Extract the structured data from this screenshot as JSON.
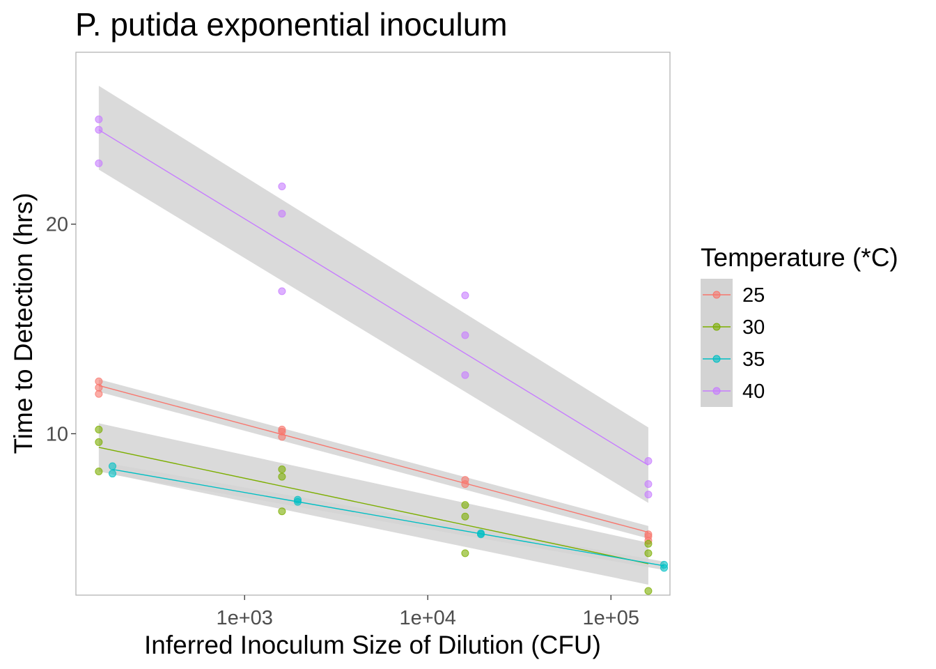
{
  "chart_data": {
    "type": "scatter",
    "title": "P. putida exponential inoculum",
    "xlabel": "Inferred Inoculum Size of Dilution (CFU)",
    "ylabel": "Time to Detection (hrs)",
    "x_scale": "log10",
    "xlim": [
      120,
      210000
    ],
    "ylim": [
      2.3,
      28.2
    ],
    "x_ticks": [
      {
        "value": 1000,
        "label": "1e+03"
      },
      {
        "value": 10000,
        "label": "1e+04"
      },
      {
        "value": 100000,
        "label": "1e+05"
      }
    ],
    "y_ticks": [
      {
        "value": 10,
        "label": "10"
      },
      {
        "value": 20,
        "label": "20"
      }
    ],
    "grid": false,
    "legend": {
      "title": "Temperature (*C)",
      "position": "right"
    },
    "confidence_band_color": "#d3d3d3",
    "series": [
      {
        "name": "25",
        "color": "#F8766D",
        "points": [
          {
            "x": 160,
            "y": 12.5
          },
          {
            "x": 160,
            "y": 12.2
          },
          {
            "x": 160,
            "y": 11.9
          },
          {
            "x": 1600,
            "y": 10.2
          },
          {
            "x": 1600,
            "y": 10.1
          },
          {
            "x": 1600,
            "y": 9.85
          },
          {
            "x": 16000,
            "y": 7.8
          },
          {
            "x": 16000,
            "y": 7.6
          },
          {
            "x": 160000,
            "y": 5.2
          },
          {
            "x": 160000,
            "y": 5.1
          },
          {
            "x": 160000,
            "y": 4.9
          }
        ],
        "fit": [
          {
            "x": 160,
            "y": 12.3
          },
          {
            "x": 160000,
            "y": 5.3
          }
        ],
        "band": [
          {
            "x": 160,
            "lo": 12.0,
            "hi": 12.6
          },
          {
            "x": 160000,
            "lo": 5.0,
            "hi": 5.6
          }
        ]
      },
      {
        "name": "30",
        "color": "#7CAE00",
        "points": [
          {
            "x": 160,
            "y": 10.2
          },
          {
            "x": 160,
            "y": 9.6
          },
          {
            "x": 160,
            "y": 8.2
          },
          {
            "x": 1600,
            "y": 8.3
          },
          {
            "x": 1600,
            "y": 7.95
          },
          {
            "x": 1600,
            "y": 6.3
          },
          {
            "x": 16000,
            "y": 6.6
          },
          {
            "x": 16000,
            "y": 6.05
          },
          {
            "x": 16000,
            "y": 4.3
          },
          {
            "x": 160000,
            "y": 4.75
          },
          {
            "x": 160000,
            "y": 4.3
          },
          {
            "x": 160000,
            "y": 2.5
          }
        ],
        "fit": [
          {
            "x": 160,
            "y": 9.35
          },
          {
            "x": 160000,
            "y": 3.8
          }
        ],
        "band": [
          {
            "x": 160,
            "lo": 8.2,
            "hi": 10.5
          },
          {
            "x": 160000,
            "lo": 2.8,
            "hi": 4.8
          }
        ]
      },
      {
        "name": "35",
        "color": "#00BFC4",
        "points": [
          {
            "x": 190,
            "y": 8.45
          },
          {
            "x": 190,
            "y": 8.1
          },
          {
            "x": 1950,
            "y": 6.85
          },
          {
            "x": 1950,
            "y": 6.75
          },
          {
            "x": 19500,
            "y": 5.25
          },
          {
            "x": 19500,
            "y": 5.2
          },
          {
            "x": 195000,
            "y": 3.75
          },
          {
            "x": 195000,
            "y": 3.6
          }
        ],
        "fit": [
          {
            "x": 190,
            "y": 8.3
          },
          {
            "x": 195000,
            "y": 3.7
          }
        ],
        "band": [
          {
            "x": 190,
            "lo": 8.05,
            "hi": 8.55
          },
          {
            "x": 195000,
            "lo": 3.5,
            "hi": 3.9
          }
        ]
      },
      {
        "name": "40",
        "color": "#C77CFF",
        "points": [
          {
            "x": 160,
            "y": 25.0
          },
          {
            "x": 160,
            "y": 24.5
          },
          {
            "x": 160,
            "y": 22.9
          },
          {
            "x": 1600,
            "y": 21.8
          },
          {
            "x": 1600,
            "y": 20.5
          },
          {
            "x": 1600,
            "y": 16.8
          },
          {
            "x": 16000,
            "y": 16.6
          },
          {
            "x": 16000,
            "y": 14.7
          },
          {
            "x": 16000,
            "y": 12.8
          },
          {
            "x": 160000,
            "y": 8.7
          },
          {
            "x": 160000,
            "y": 7.6
          },
          {
            "x": 160000,
            "y": 7.1
          }
        ],
        "fit": [
          {
            "x": 160,
            "y": 24.5
          },
          {
            "x": 160000,
            "y": 8.5
          }
        ],
        "band": [
          {
            "x": 160,
            "lo": 22.6,
            "hi": 26.6
          },
          {
            "x": 160000,
            "lo": 6.7,
            "hi": 10.3
          }
        ]
      }
    ]
  }
}
